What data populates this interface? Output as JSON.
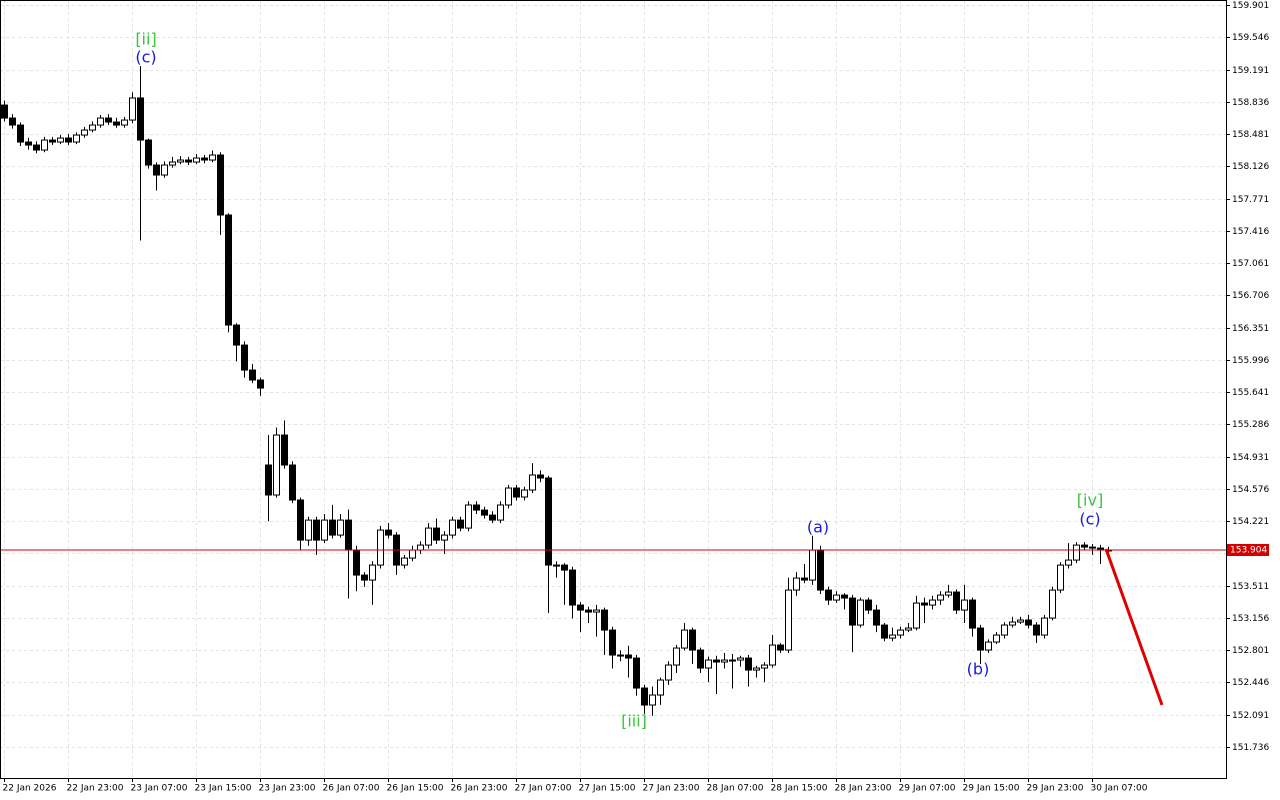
{
  "chart_data": {
    "type": "candlestick",
    "ylim": [
      151.395,
      159.956
    ],
    "yticks": [
      159.901,
      159.546,
      159.191,
      158.836,
      158.481,
      158.126,
      157.771,
      157.416,
      157.061,
      156.706,
      156.351,
      155.996,
      155.641,
      155.286,
      154.931,
      154.576,
      154.221,
      153.866,
      153.511,
      153.156,
      152.801,
      152.446,
      152.091,
      151.736
    ],
    "xlim": [
      -0.5,
      152.75
    ],
    "xticks": [
      {
        "value": 0,
        "label": "22 Jan 2026"
      },
      {
        "value": 8,
        "label": "22 Jan 23:00"
      },
      {
        "value": 16,
        "label": "23 Jan 07:00"
      },
      {
        "value": 24,
        "label": "23 Jan 15:00"
      },
      {
        "value": 32,
        "label": "23 Jan 23:00"
      },
      {
        "value": 40,
        "label": "26 Jan 07:00"
      },
      {
        "value": 48,
        "label": "26 Jan 15:00"
      },
      {
        "value": 56,
        "label": "26 Jan 23:00"
      },
      {
        "value": 64,
        "label": "27 Jan 07:00"
      },
      {
        "value": 72,
        "label": "27 Jan 15:00"
      },
      {
        "value": 80,
        "label": "27 Jan 23:00"
      },
      {
        "value": 88,
        "label": "28 Jan 07:00"
      },
      {
        "value": 96,
        "label": "28 Jan 15:00"
      },
      {
        "value": 104,
        "label": "28 Jan 23:00"
      },
      {
        "value": 112,
        "label": "29 Jan 07:00"
      },
      {
        "value": 120,
        "label": "29 Jan 15:00"
      },
      {
        "value": 128,
        "label": "29 Jan 23:00"
      },
      {
        "value": 136,
        "label": "30 Jan 07:00"
      }
    ],
    "grid": true,
    "bull_color": "#ffffff",
    "bear_color": "#000000",
    "price_line_color": "#d40000",
    "current_price": 153.904,
    "annotations": [
      {
        "text": "[ii]",
        "color": "#3cc43c"
      },
      {
        "text": "(c)",
        "color": "#1a1ad8"
      },
      {
        "text": "(a)",
        "color": "#1a1ad8"
      },
      {
        "text": "[iii]",
        "color": "#3cc43c"
      },
      {
        "text": "(b)",
        "color": "#1a1ad8"
      },
      {
        "text": "[iv]",
        "color": "#3cc43c"
      },
      {
        "text": "(c)",
        "color": "#1a1ad8"
      }
    ],
    "candles": [
      [
        158.8,
        158.85,
        158.62,
        158.657
      ],
      [
        158.657,
        158.7,
        158.54,
        158.58
      ],
      [
        158.58,
        158.61,
        158.35,
        158.393
      ],
      [
        158.393,
        158.44,
        158.31,
        158.36
      ],
      [
        158.36,
        158.4,
        158.27,
        158.305
      ],
      [
        158.305,
        158.45,
        158.28,
        158.415
      ],
      [
        158.415,
        158.45,
        158.36,
        158.393
      ],
      [
        158.393,
        158.47,
        158.37,
        158.437
      ],
      [
        158.437,
        158.48,
        158.36,
        158.393
      ],
      [
        158.393,
        158.5,
        158.37,
        158.47
      ],
      [
        158.47,
        158.56,
        158.44,
        158.525
      ],
      [
        158.525,
        158.62,
        158.5,
        158.58
      ],
      [
        158.58,
        158.69,
        158.55,
        158.657
      ],
      [
        158.657,
        158.7,
        158.58,
        158.613
      ],
      [
        158.613,
        158.66,
        158.55,
        158.58
      ],
      [
        158.58,
        158.67,
        158.55,
        158.635
      ],
      [
        158.635,
        158.94,
        158.6,
        158.878
      ],
      [
        158.878,
        159.23,
        157.31,
        158.415
      ],
      [
        158.415,
        158.43,
        158.1,
        158.14
      ],
      [
        158.14,
        158.17,
        157.86,
        158.03
      ],
      [
        158.03,
        158.18,
        158.0,
        158.14
      ],
      [
        158.14,
        158.23,
        158.11,
        158.173
      ],
      [
        158.173,
        158.24,
        158.15,
        158.195
      ],
      [
        158.195,
        158.23,
        158.14,
        158.173
      ],
      [
        158.173,
        158.26,
        158.15,
        158.217
      ],
      [
        158.217,
        158.25,
        158.16,
        158.195
      ],
      [
        158.195,
        158.3,
        158.17,
        158.25
      ],
      [
        158.25,
        158.28,
        157.37,
        157.59
      ],
      [
        157.59,
        157.61,
        156.3,
        156.379
      ],
      [
        156.379,
        156.4,
        155.98,
        156.159
      ],
      [
        156.159,
        156.2,
        155.8,
        155.884
      ],
      [
        155.884,
        155.95,
        155.74,
        155.774
      ],
      [
        155.774,
        155.8,
        155.6,
        155.686
      ],
      [
        154.839,
        155.17,
        154.22,
        154.509
      ],
      [
        154.509,
        155.25,
        154.48,
        155.169
      ],
      [
        155.169,
        155.33,
        154.8,
        154.839
      ],
      [
        154.839,
        154.88,
        154.42,
        154.454
      ],
      [
        154.454,
        154.48,
        153.9,
        154.013
      ],
      [
        154.013,
        154.27,
        153.95,
        154.233
      ],
      [
        154.233,
        154.27,
        153.85,
        154.013
      ],
      [
        154.013,
        154.3,
        153.98,
        154.233
      ],
      [
        154.233,
        154.4,
        154.03,
        154.068
      ],
      [
        154.068,
        154.3,
        154.04,
        154.233
      ],
      [
        154.233,
        154.35,
        153.37,
        153.903
      ],
      [
        153.903,
        153.95,
        153.45,
        153.628
      ],
      [
        153.628,
        153.66,
        153.5,
        153.573
      ],
      [
        153.573,
        153.78,
        153.3,
        153.738
      ],
      [
        153.738,
        154.17,
        153.7,
        154.123
      ],
      [
        154.123,
        154.2,
        154.03,
        154.068
      ],
      [
        154.068,
        154.1,
        153.63,
        153.738
      ],
      [
        153.738,
        153.85,
        153.7,
        153.815
      ],
      [
        153.815,
        153.95,
        153.78,
        153.903
      ],
      [
        153.903,
        154.0,
        153.86,
        153.958
      ],
      [
        153.958,
        154.2,
        153.92,
        154.145
      ],
      [
        154.145,
        154.25,
        153.97,
        154.013
      ],
      [
        154.013,
        154.11,
        153.86,
        154.068
      ],
      [
        154.068,
        154.27,
        154.03,
        154.233
      ],
      [
        154.233,
        154.27,
        154.11,
        154.145
      ],
      [
        154.145,
        154.44,
        154.11,
        154.399
      ],
      [
        154.399,
        154.44,
        154.3,
        154.343
      ],
      [
        154.343,
        154.38,
        154.25,
        154.288
      ],
      [
        154.288,
        154.33,
        154.2,
        154.233
      ],
      [
        154.233,
        154.44,
        154.2,
        154.399
      ],
      [
        154.399,
        154.62,
        154.36,
        154.586
      ],
      [
        154.586,
        154.62,
        154.45,
        154.487
      ],
      [
        154.487,
        154.6,
        154.45,
        154.564
      ],
      [
        154.564,
        154.86,
        154.53,
        154.729
      ],
      [
        154.729,
        154.78,
        154.65,
        154.696
      ],
      [
        154.696,
        154.72,
        153.21,
        153.738
      ],
      [
        153.738,
        153.78,
        153.6,
        153.738
      ],
      [
        153.738,
        153.76,
        153.3,
        153.683
      ],
      [
        153.683,
        153.72,
        153.15,
        153.298
      ],
      [
        153.298,
        153.33,
        153.0,
        153.243
      ],
      [
        153.243,
        153.28,
        153.1,
        153.221
      ],
      [
        153.221,
        153.3,
        152.95,
        153.243
      ],
      [
        153.243,
        153.27,
        152.75,
        153.023
      ],
      [
        153.023,
        153.06,
        152.6,
        152.748
      ],
      [
        152.748,
        152.8,
        152.68,
        152.748
      ],
      [
        152.748,
        152.85,
        152.5,
        152.715
      ],
      [
        152.715,
        152.75,
        152.3,
        152.385
      ],
      [
        152.385,
        152.42,
        152.1,
        152.198
      ],
      [
        152.198,
        152.4,
        152.08,
        152.308
      ],
      [
        152.308,
        152.5,
        152.2,
        152.473
      ],
      [
        152.473,
        152.68,
        152.42,
        152.638
      ],
      [
        152.638,
        152.86,
        152.55,
        152.825
      ],
      [
        152.825,
        153.1,
        152.8,
        153.023
      ],
      [
        153.023,
        153.05,
        152.65,
        152.803
      ],
      [
        152.803,
        152.83,
        152.55,
        152.605
      ],
      [
        152.605,
        152.73,
        152.45,
        152.693
      ],
      [
        152.693,
        152.74,
        152.32,
        152.671
      ],
      [
        152.671,
        152.77,
        152.6,
        152.693
      ],
      [
        152.693,
        152.76,
        152.38,
        152.693
      ],
      [
        152.693,
        152.74,
        152.62,
        152.715
      ],
      [
        152.715,
        152.75,
        152.4,
        152.583
      ],
      [
        152.583,
        152.63,
        152.5,
        152.605
      ],
      [
        152.605,
        152.67,
        152.45,
        152.638
      ],
      [
        152.638,
        152.97,
        152.61,
        152.858
      ],
      [
        152.858,
        152.88,
        152.77,
        152.803
      ],
      [
        152.803,
        153.6,
        152.77,
        153.463
      ],
      [
        153.463,
        153.66,
        153.4,
        153.595
      ],
      [
        153.595,
        153.75,
        153.54,
        153.573
      ],
      [
        153.573,
        154.06,
        153.52,
        153.903
      ],
      [
        153.903,
        153.95,
        153.42,
        153.463
      ],
      [
        153.463,
        153.5,
        153.3,
        153.353
      ],
      [
        153.353,
        153.45,
        153.32,
        153.408
      ],
      [
        153.408,
        153.43,
        153.25,
        153.375
      ],
      [
        153.375,
        153.41,
        152.78,
        153.078
      ],
      [
        153.078,
        153.38,
        153.05,
        153.353
      ],
      [
        153.353,
        153.38,
        153.2,
        153.243
      ],
      [
        153.243,
        153.3,
        153.0,
        153.078
      ],
      [
        153.078,
        153.1,
        152.9,
        152.935
      ],
      [
        152.935,
        153.05,
        152.9,
        152.968
      ],
      [
        152.968,
        153.06,
        152.93,
        153.023
      ],
      [
        153.023,
        153.1,
        153.0,
        153.045
      ],
      [
        153.045,
        153.4,
        153.02,
        153.32
      ],
      [
        153.32,
        153.38,
        153.1,
        153.298
      ],
      [
        153.298,
        153.4,
        153.25,
        153.353
      ],
      [
        153.353,
        153.45,
        153.3,
        153.408
      ],
      [
        153.408,
        153.52,
        153.38,
        153.441
      ],
      [
        153.441,
        153.47,
        153.2,
        153.243
      ],
      [
        153.243,
        153.52,
        153.1,
        153.353
      ],
      [
        153.353,
        153.38,
        152.95,
        153.045
      ],
      [
        153.045,
        153.08,
        152.65,
        152.803
      ],
      [
        152.803,
        152.92,
        152.77,
        152.891
      ],
      [
        152.891,
        153.0,
        152.87,
        152.968
      ],
      [
        152.968,
        153.11,
        152.93,
        153.078
      ],
      [
        153.078,
        153.17,
        153.05,
        153.111
      ],
      [
        153.111,
        153.17,
        153.09,
        153.133
      ],
      [
        153.133,
        153.19,
        153.04,
        153.078
      ],
      [
        153.078,
        153.11,
        152.88,
        152.968
      ],
      [
        152.968,
        153.19,
        152.93,
        153.155
      ],
      [
        153.155,
        153.5,
        153.13,
        153.463
      ],
      [
        153.463,
        153.77,
        153.43,
        153.738
      ],
      [
        153.738,
        153.98,
        153.7,
        153.793
      ],
      [
        153.793,
        153.99,
        153.76,
        153.958
      ],
      [
        153.958,
        153.99,
        153.9,
        153.936
      ],
      [
        153.936,
        153.97,
        153.85,
        153.925
      ],
      [
        153.925,
        153.96,
        153.75,
        153.903
      ],
      [
        153.903,
        153.94,
        153.86,
        153.904
      ]
    ]
  }
}
